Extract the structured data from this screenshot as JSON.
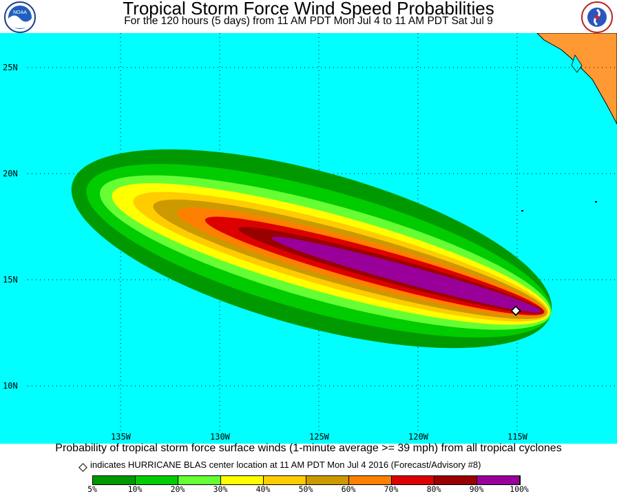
{
  "header": {
    "title": "Tropical Storm Force Wind Speed Probabilities",
    "subtitle": "For the 120 hours (5 days) from 11 AM PDT Mon Jul 4 to 11 AM PDT Sat Jul 9",
    "left_logo_text": "NOAA",
    "right_logo_text": "NATIONAL WEATHER SERVICE"
  },
  "map": {
    "ocean_color": "#00ffff",
    "land_color": "#ff9933",
    "lat_labels": [
      "25N",
      "20N",
      "15N",
      "10N"
    ],
    "lon_labels": [
      "135W",
      "130W",
      "125W",
      "120W",
      "115W"
    ],
    "storm_center": {
      "name": "HURRICANE BLAS",
      "lat": 13.5,
      "lon": -114.9
    }
  },
  "caption": "Probability of tropical storm force surface winds (1-minute average >= 39 mph) from all tropical cyclones",
  "legend": {
    "note": "indicates HURRICANE BLAS center location at 11 AM PDT Mon Jul 4 2016 (Forecast/Advisory #8)",
    "colors": [
      "#009900",
      "#00cc00",
      "#66ff33",
      "#ffff00",
      "#ffcc00",
      "#cc9900",
      "#ff8000",
      "#dd0000",
      "#990000",
      "#990099"
    ],
    "tick_labels": [
      "5%",
      "10%",
      "20%",
      "30%",
      "40%",
      "50%",
      "60%",
      "70%",
      "80%",
      "90%",
      "100%"
    ]
  }
}
